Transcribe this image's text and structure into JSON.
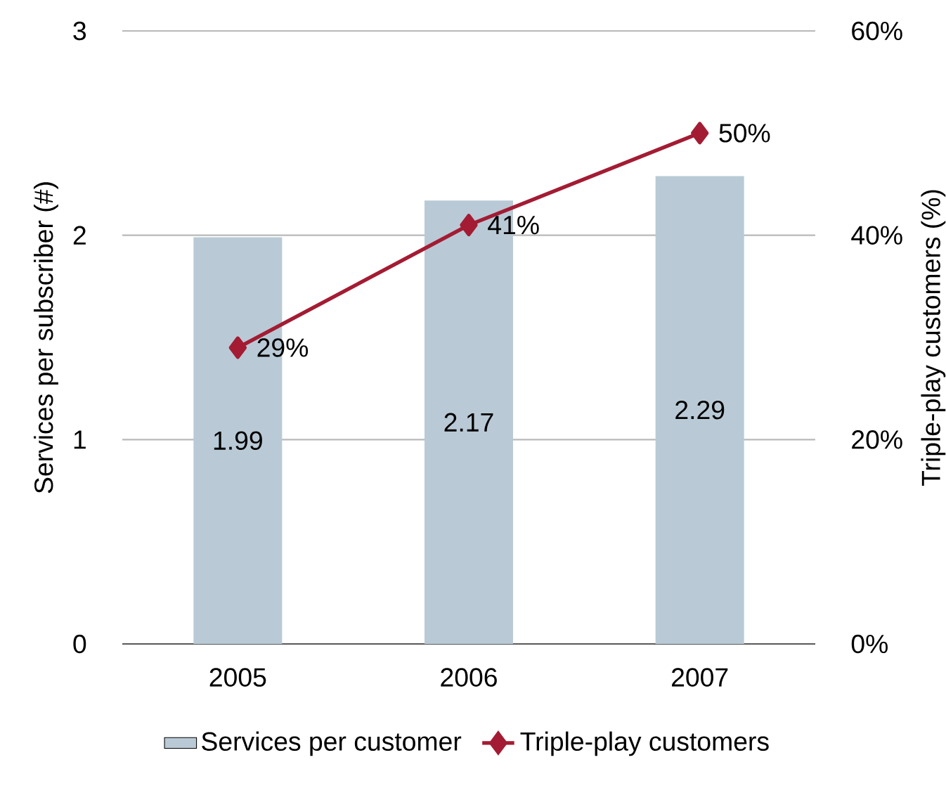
{
  "chart_data": {
    "type": "bar",
    "ylabel": "Services per subscriber (#)",
    "y2label": "Triple-play customers (%)",
    "categories": [
      "2005",
      "2006",
      "2007"
    ],
    "series": [
      {
        "name": "Services per customer",
        "color": "#b9cad6",
        "values": [
          1.99,
          2.17,
          2.29
        ],
        "value_labels": [
          "1.99",
          "2.17",
          "2.29"
        ]
      },
      {
        "name": "Triple-play customers",
        "type": "line",
        "axis": "y2",
        "color": "#a31c33",
        "values": [
          29,
          41,
          50
        ],
        "value_labels": [
          "29%",
          "41%",
          "50%"
        ]
      }
    ],
    "ylim": [
      0,
      3
    ],
    "yticks": [
      0,
      1,
      2,
      3
    ],
    "y2lim": [
      0,
      60
    ],
    "y2ticks": [
      {
        "value": 0,
        "label": "0%"
      },
      {
        "value": 20,
        "label": "20%"
      },
      {
        "value": 40,
        "label": "40%"
      },
      {
        "value": 60,
        "label": "60%"
      }
    ],
    "grid": "y",
    "legend": "bottom",
    "marker": "diamond",
    "line_style": "solid"
  }
}
